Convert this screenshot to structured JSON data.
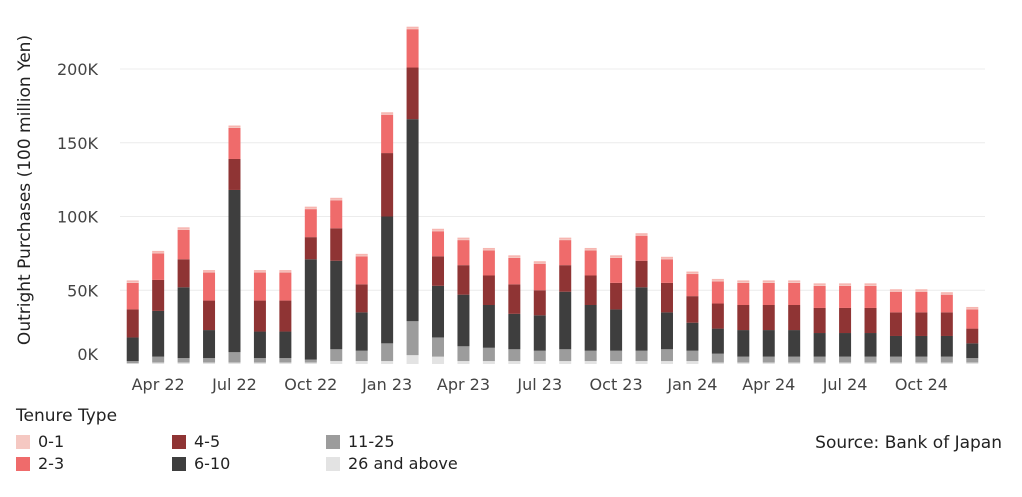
{
  "chart_data": {
    "type": "bar",
    "stacked": true,
    "xlabel": "",
    "ylabel": "Outright Purchases (100 million Yen)",
    "ylim": [
      0,
      240000
    ],
    "yticks": [
      0,
      50000,
      100000,
      150000,
      200000
    ],
    "ytick_labels": [
      "0K",
      "50K",
      "100K",
      "150K",
      "200K"
    ],
    "xtick_labels": [
      {
        "index": 1,
        "label": "Apr 22"
      },
      {
        "index": 4,
        "label": "Jul 22"
      },
      {
        "index": 7,
        "label": "Oct 22"
      },
      {
        "index": 10,
        "label": "Jan 23"
      },
      {
        "index": 13,
        "label": "Apr 23"
      },
      {
        "index": 16,
        "label": "Jul 23"
      },
      {
        "index": 19,
        "label": "Oct 23"
      },
      {
        "index": 22,
        "label": "Jan 24"
      },
      {
        "index": 25,
        "label": "Apr 24"
      },
      {
        "index": 28,
        "label": "Jul 24"
      },
      {
        "index": 31,
        "label": "Oct 24"
      }
    ],
    "categories": [
      "Feb 22",
      "Mar 22",
      "Apr 22",
      "May 22",
      "Jun 22",
      "Jul 22",
      "Aug 22",
      "Sep 22",
      "Oct 22",
      "Nov 22",
      "Dec 22",
      "Jan 23",
      "Feb 23",
      "Mar 23",
      "Apr 23",
      "May 23",
      "Jun 23",
      "Jul 23",
      "Aug 23",
      "Sep 23",
      "Oct 23",
      "Nov 23",
      "Dec 23",
      "Jan 24",
      "Feb 24",
      "Mar 24",
      "Apr 24",
      "May 24",
      "Jun 24",
      "Jul 24",
      "Aug 24",
      "Sep 24",
      "Oct 24",
      "Nov 24"
    ],
    "series": [
      {
        "name": "26 and above",
        "color": "#e3e3e3",
        "values": [
          500,
          1000,
          1000,
          1000,
          1000,
          1000,
          1000,
          1000,
          2000,
          2000,
          2000,
          6000,
          5000,
          2000,
          2000,
          2000,
          2000,
          2000,
          2000,
          2000,
          2000,
          2000,
          2000,
          1000,
          1000,
          1000,
          1000,
          1000,
          1000,
          1000,
          1000,
          1000,
          1000,
          1000
        ]
      },
      {
        "name": "11-25",
        "color": "#9c9c9c",
        "values": [
          1500,
          4000,
          3000,
          3000,
          7000,
          3000,
          3000,
          2000,
          8000,
          7000,
          12000,
          23000,
          13000,
          10000,
          9000,
          8000,
          7000,
          8000,
          7000,
          7000,
          7000,
          8000,
          7000,
          6000,
          4000,
          4000,
          4000,
          4000,
          4000,
          4000,
          4000,
          4000,
          4000,
          3000
        ]
      },
      {
        "name": "6-10",
        "color": "#3e3e3e",
        "values": [
          16000,
          31000,
          48000,
          19000,
          110000,
          18000,
          18000,
          68000,
          60000,
          26000,
          86000,
          137000,
          35000,
          35000,
          29000,
          24000,
          24000,
          39000,
          31000,
          28000,
          43000,
          25000,
          19000,
          17000,
          18000,
          18000,
          18000,
          16000,
          16000,
          16000,
          14000,
          14000,
          14000,
          10000
        ]
      },
      {
        "name": "4-5",
        "color": "#8f3434",
        "values": [
          19000,
          21000,
          19000,
          20000,
          21000,
          21000,
          21000,
          15000,
          22000,
          19000,
          43000,
          35000,
          20000,
          20000,
          20000,
          20000,
          17000,
          18000,
          20000,
          18000,
          18000,
          20000,
          18000,
          17000,
          17000,
          17000,
          17000,
          17000,
          17000,
          17000,
          16000,
          16000,
          16000,
          10000
        ]
      },
      {
        "name": "2-3",
        "color": "#ef6b6b",
        "values": [
          18000,
          18000,
          20000,
          19000,
          21000,
          19000,
          19000,
          19000,
          19000,
          19000,
          26000,
          26000,
          17000,
          17000,
          17000,
          18000,
          18000,
          17000,
          17000,
          17000,
          17000,
          16000,
          15000,
          15000,
          15000,
          15000,
          15000,
          15000,
          15000,
          15000,
          14000,
          14000,
          12000,
          13000
        ]
      },
      {
        "name": "0-1",
        "color": "#f5c8c2",
        "values": [
          1000,
          1000,
          1000,
          1000,
          1000,
          1000,
          1000,
          1000,
          1000,
          1000,
          1000,
          1000,
          1000,
          1000,
          1000,
          1000,
          1000,
          1000,
          1000,
          1000,
          1000,
          1000,
          1000,
          1000,
          1000,
          1000,
          1000,
          1000,
          1000,
          1000,
          1000,
          1000,
          1000,
          1000
        ]
      }
    ],
    "grid": true,
    "legend_placement": "bottom-left"
  },
  "legend": {
    "title": "Tenure Type",
    "items": [
      {
        "label": "0-1",
        "color": "#f5c8c2"
      },
      {
        "label": "2-3",
        "color": "#ef6b6b"
      },
      {
        "label": "4-5",
        "color": "#8f3434"
      },
      {
        "label": "6-10",
        "color": "#3e3e3e"
      },
      {
        "label": "11-25",
        "color": "#9c9c9c"
      },
      {
        "label": "26 and above",
        "color": "#e3e3e3"
      }
    ]
  },
  "source": "Source: Bank of Japan"
}
